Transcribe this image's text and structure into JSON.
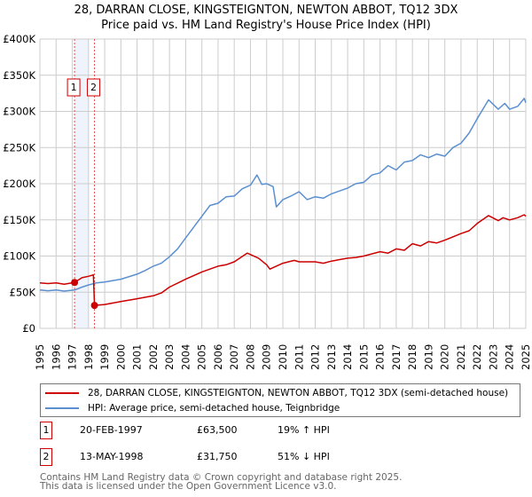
{
  "chart_data": {
    "type": "line",
    "title": "28, DARRAN CLOSE, KINGSTEIGNTON, NEWTON ABBOT, TQ12 3DX",
    "subtitle": "Price paid vs. HM Land Registry's House Price Index (HPI)",
    "xlim": [
      1995,
      2025
    ],
    "ylim": [
      0,
      400000
    ],
    "x_ticks": [
      "1995",
      "1996",
      "1997",
      "1998",
      "1999",
      "2000",
      "2001",
      "2002",
      "2003",
      "2004",
      "2005",
      "2006",
      "2007",
      "2008",
      "2009",
      "2010",
      "2011",
      "2012",
      "2013",
      "2014",
      "2015",
      "2016",
      "2017",
      "2018",
      "2019",
      "2020",
      "2021",
      "2022",
      "2023",
      "2024",
      "2025"
    ],
    "y_ticks": [
      {
        "v": 0,
        "label": "£0"
      },
      {
        "v": 50000,
        "label": "£50K"
      },
      {
        "v": 100000,
        "label": "£100K"
      },
      {
        "v": 150000,
        "label": "£150K"
      },
      {
        "v": 200000,
        "label": "£200K"
      },
      {
        "v": 250000,
        "label": "£250K"
      },
      {
        "v": 300000,
        "label": "£300K"
      },
      {
        "v": 350000,
        "label": "£350K"
      },
      {
        "v": 400000,
        "label": "£400K"
      }
    ],
    "grid": true,
    "series": [
      {
        "name": "28, DARRAN CLOSE, KINGSTEIGNTON, NEWTON ABBOT, TQ12 3DX (semi-detached house)",
        "color": "#cc0000",
        "points": [
          [
            1995,
            63000
          ],
          [
            1995.5,
            62000
          ],
          [
            1996,
            63000
          ],
          [
            1996.5,
            61000
          ],
          [
            1997.14,
            63500
          ],
          [
            1997.6,
            70000
          ],
          [
            1998.0,
            72000
          ],
          [
            1998.3,
            74000
          ],
          [
            1998.37,
            31750
          ],
          [
            1999,
            33000
          ],
          [
            2000,
            37000
          ],
          [
            2001,
            41000
          ],
          [
            2002,
            45000
          ],
          [
            2002.5,
            49000
          ],
          [
            2003,
            57000
          ],
          [
            2004,
            68000
          ],
          [
            2005,
            78000
          ],
          [
            2006,
            86000
          ],
          [
            2006.5,
            88000
          ],
          [
            2007,
            92000
          ],
          [
            2007.8,
            104000
          ],
          [
            2008.5,
            97000
          ],
          [
            2009.0,
            88000
          ],
          [
            2009.2,
            82000
          ],
          [
            2010,
            90000
          ],
          [
            2010.7,
            94000
          ],
          [
            2011,
            92000
          ],
          [
            2012,
            92000
          ],
          [
            2012.5,
            90000
          ],
          [
            2013,
            93000
          ],
          [
            2014,
            97000
          ],
          [
            2014.5,
            98000
          ],
          [
            2015,
            100000
          ],
          [
            2016,
            106000
          ],
          [
            2016.5,
            104000
          ],
          [
            2017,
            110000
          ],
          [
            2017.5,
            108000
          ],
          [
            2018,
            117000
          ],
          [
            2018.5,
            114000
          ],
          [
            2019,
            120000
          ],
          [
            2019.5,
            118000
          ],
          [
            2020,
            122000
          ],
          [
            2021,
            131000
          ],
          [
            2021.5,
            135000
          ],
          [
            2022,
            145000
          ],
          [
            2022.7,
            156000
          ],
          [
            2023.3,
            149000
          ],
          [
            2023.6,
            153000
          ],
          [
            2024,
            150000
          ],
          [
            2024.5,
            153000
          ],
          [
            2024.9,
            157000
          ],
          [
            2025,
            155000
          ]
        ]
      },
      {
        "name": "HPI: Average price, semi-detached house, Teignbridge",
        "color": "#5b8fd0",
        "points": [
          [
            1995,
            53000
          ],
          [
            1995.5,
            52000
          ],
          [
            1996,
            53000
          ],
          [
            1996.5,
            51500
          ],
          [
            1997.14,
            53000
          ],
          [
            1997.6,
            57000
          ],
          [
            1998.0,
            60000
          ],
          [
            1998.5,
            63000
          ],
          [
            1999,
            64000
          ],
          [
            2000,
            68000
          ],
          [
            2001,
            75000
          ],
          [
            2001.5,
            80000
          ],
          [
            2002,
            86000
          ],
          [
            2002.5,
            90000
          ],
          [
            2003,
            99000
          ],
          [
            2003.5,
            110000
          ],
          [
            2004,
            125000
          ],
          [
            2004.5,
            140000
          ],
          [
            2005,
            155000
          ],
          [
            2005.5,
            170000
          ],
          [
            2006,
            173000
          ],
          [
            2006.5,
            182000
          ],
          [
            2007,
            183000
          ],
          [
            2007.5,
            193000
          ],
          [
            2008.0,
            198000
          ],
          [
            2008.4,
            212000
          ],
          [
            2008.7,
            199000
          ],
          [
            2009.0,
            200000
          ],
          [
            2009.4,
            196000
          ],
          [
            2009.6,
            168000
          ],
          [
            2010,
            178000
          ],
          [
            2010.5,
            183000
          ],
          [
            2011,
            189000
          ],
          [
            2011.5,
            178000
          ],
          [
            2012,
            182000
          ],
          [
            2012.5,
            180000
          ],
          [
            2013,
            186000
          ],
          [
            2013.5,
            190000
          ],
          [
            2014,
            194000
          ],
          [
            2014.5,
            200000
          ],
          [
            2015,
            202000
          ],
          [
            2015.5,
            212000
          ],
          [
            2016,
            215000
          ],
          [
            2016.5,
            225000
          ],
          [
            2017,
            219000
          ],
          [
            2017.5,
            230000
          ],
          [
            2018,
            232000
          ],
          [
            2018.5,
            240000
          ],
          [
            2019,
            236000
          ],
          [
            2019.5,
            241000
          ],
          [
            2020,
            238000
          ],
          [
            2020.5,
            250000
          ],
          [
            2021,
            256000
          ],
          [
            2021.5,
            270000
          ],
          [
            2022,
            290000
          ],
          [
            2022.7,
            316000
          ],
          [
            2023.3,
            303000
          ],
          [
            2023.7,
            311000
          ],
          [
            2024,
            303000
          ],
          [
            2024.5,
            307000
          ],
          [
            2024.9,
            318000
          ],
          [
            2025,
            312000
          ]
        ]
      }
    ],
    "shaded_range": [
      1997.14,
      1998.0
    ],
    "annotations": [
      {
        "label": "1",
        "x": 1997.14,
        "y": 63500
      },
      {
        "label": "2",
        "x": 1998.37,
        "y": 31750
      }
    ],
    "legend_position": "below"
  },
  "table": [
    {
      "num": "1",
      "date": "20-FEB-1997",
      "price": "£63,500",
      "hpi": "19% ↑ HPI"
    },
    {
      "num": "2",
      "date": "13-MAY-1998",
      "price": "£31,750",
      "hpi": "51% ↓ HPI"
    }
  ],
  "footer": [
    "Contains HM Land Registry data © Crown copyright and database right 2025.",
    "This data is licensed under the Open Government Licence v3.0."
  ]
}
